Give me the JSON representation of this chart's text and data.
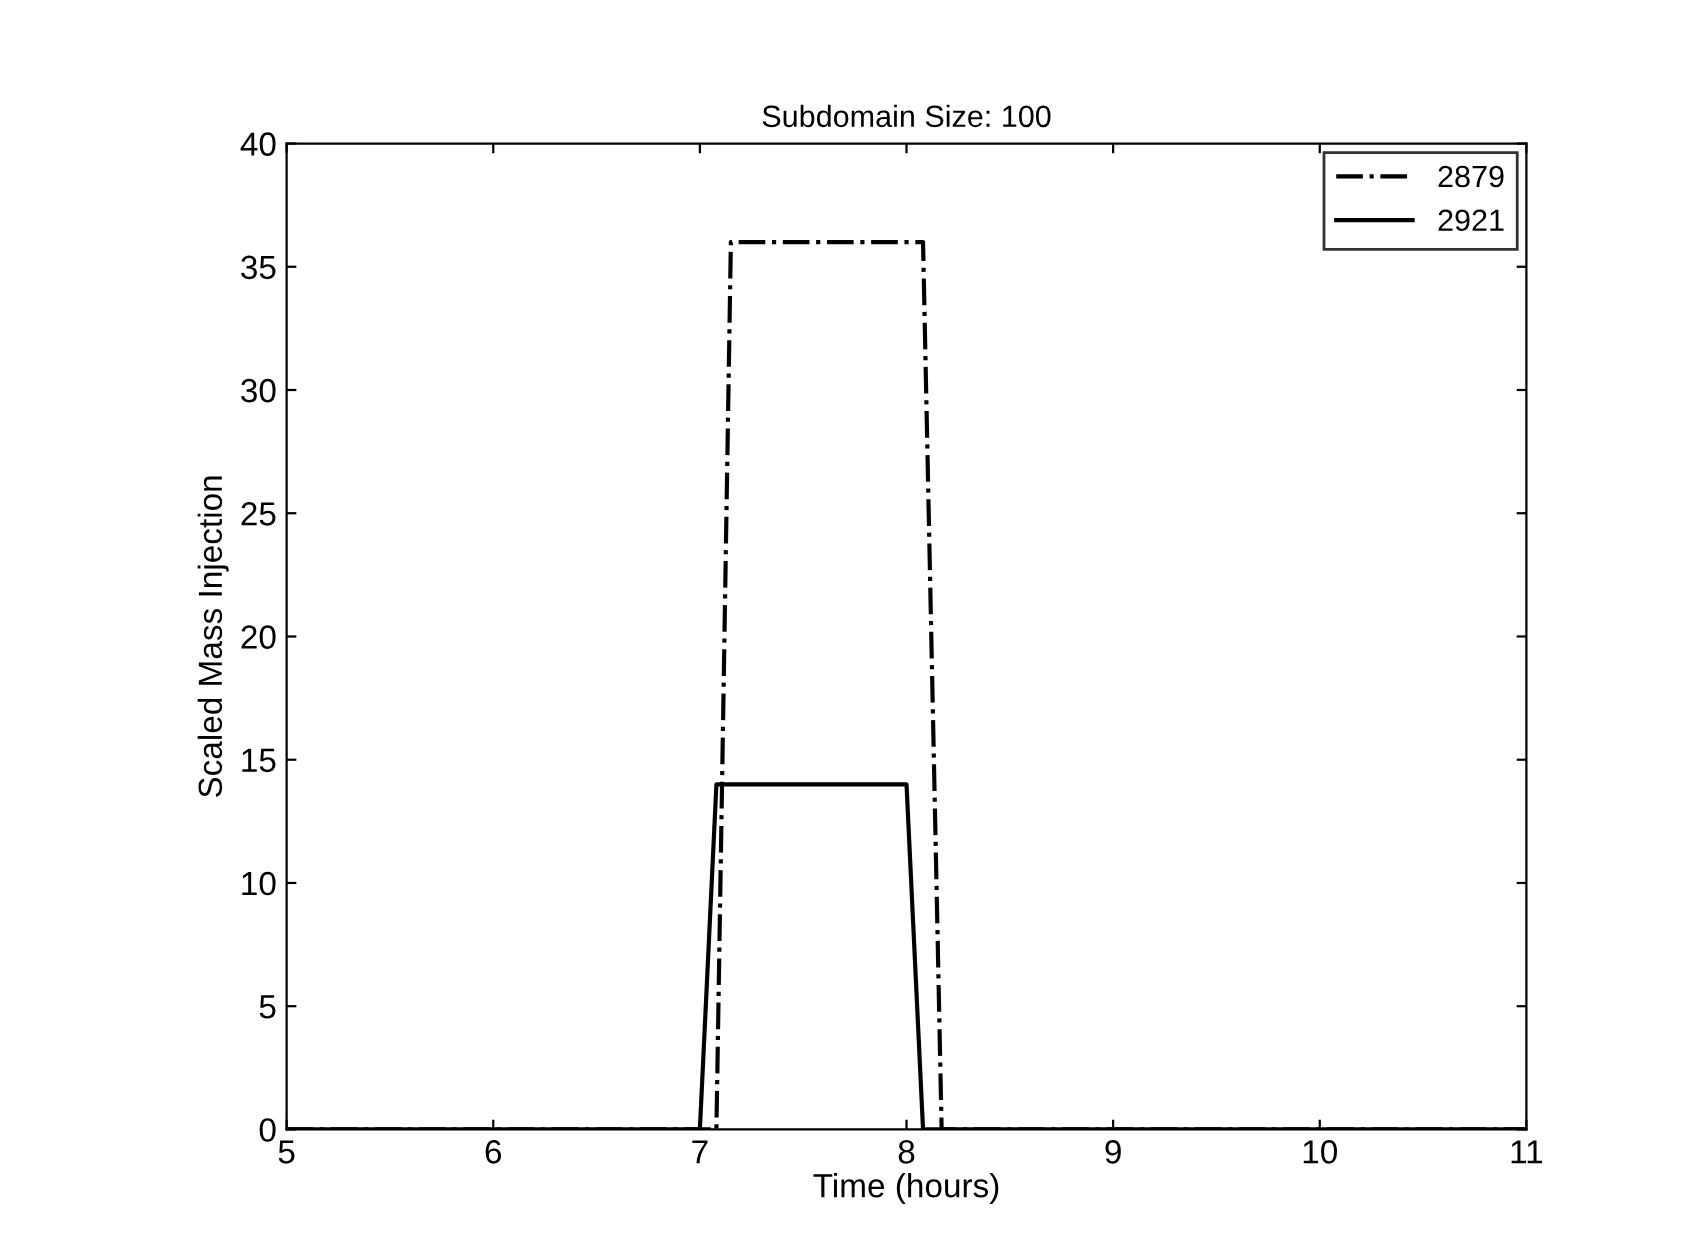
{
  "chart_data": {
    "type": "line",
    "title": "Subdomain Size: 100",
    "xlabel": "Time (hours)",
    "ylabel": "Scaled Mass Injection",
    "xlim": [
      5,
      11
    ],
    "xticks": [
      5,
      6,
      7,
      8,
      9,
      10,
      11
    ],
    "ylim": [
      0,
      40
    ],
    "yticks": [
      0,
      5,
      10,
      15,
      20,
      25,
      30,
      35,
      40
    ],
    "grid": false,
    "legend": "top right",
    "series": [
      {
        "name": "2879",
        "color": "#000000",
        "line_style": "dashdot",
        "x": [
          5,
          7.08,
          7.15,
          8.08,
          8.17,
          11
        ],
        "values": [
          0,
          0,
          36,
          36,
          0,
          0
        ]
      },
      {
        "name": "2921",
        "color": "#000000",
        "line_style": "solid",
        "x": [
          5,
          7.0,
          7.08,
          8.0,
          8.08,
          11
        ],
        "values": [
          0,
          0,
          14,
          14,
          0,
          0
        ]
      }
    ]
  }
}
